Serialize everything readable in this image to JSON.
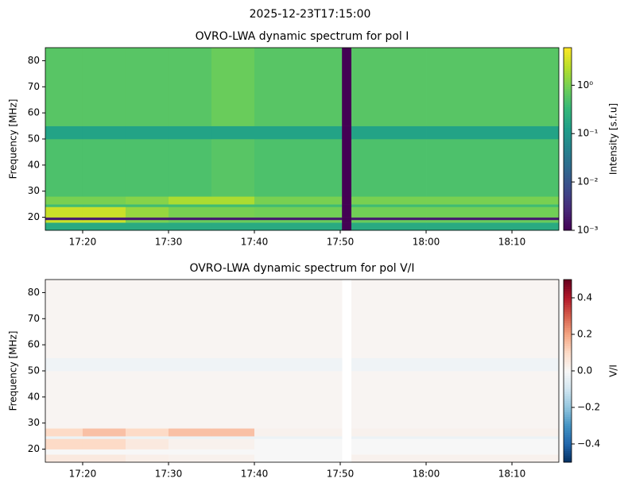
{
  "title": "2025-12-23T17:15:00",
  "chart_data": [
    {
      "type": "heatmap",
      "title": "OVRO-LWA dynamic spectrum for pol I",
      "ylabel": "Frequency [MHz]",
      "xbins": [
        1035.65,
        1040,
        1045,
        1050,
        1055,
        1060,
        1070.2,
        1071.3,
        1080,
        1095.46
      ],
      "ybins": [
        15,
        18,
        19,
        20,
        24,
        25,
        28,
        50,
        55,
        85
      ],
      "z": [
        [
          0.2,
          0.2,
          0.2,
          0.2,
          0.2,
          0.2,
          0.001,
          0.2,
          0.2
        ],
        [
          3,
          3,
          1,
          0.8,
          0.8,
          0.8,
          0.001,
          0.8,
          0.8
        ],
        [
          0.002,
          0.002,
          0.002,
          0.002,
          0.002,
          0.002,
          0.001,
          0.002,
          0.002
        ],
        [
          3,
          3,
          1.5,
          1,
          1,
          0.9,
          0.001,
          0.9,
          0.9
        ],
        [
          0.4,
          0.4,
          0.4,
          0.4,
          0.4,
          0.4,
          0.001,
          0.4,
          0.4
        ],
        [
          1,
          1,
          1.2,
          2,
          2,
          1,
          0.001,
          1,
          1
        ],
        [
          0.5,
          0.5,
          0.5,
          0.5,
          0.6,
          0.5,
          0.001,
          0.5,
          0.5
        ],
        [
          0.15,
          0.15,
          0.15,
          0.15,
          0.15,
          0.15,
          0.001,
          0.15,
          0.15
        ],
        [
          0.6,
          0.6,
          0.6,
          0.6,
          0.8,
          0.6,
          0.001,
          0.6,
          0.6
        ]
      ],
      "xlim": [
        1035.65,
        1095.46
      ],
      "ylim": [
        15,
        85
      ],
      "xticks": [
        {
          "value": 1040,
          "label": "17:20"
        },
        {
          "value": 1050,
          "label": "17:30"
        },
        {
          "value": 1060,
          "label": "17:40"
        },
        {
          "value": 1070,
          "label": "17:50"
        },
        {
          "value": 1080,
          "label": "18:00"
        },
        {
          "value": 1090,
          "label": "18:10"
        }
      ],
      "yticks": [
        20,
        30,
        40,
        50,
        60,
        70,
        80
      ],
      "colorbar": {
        "label": "Intensity [s.f.u]",
        "cmap": "viridis",
        "scale": "log",
        "lim": [
          0.001,
          6
        ],
        "ticks": [
          {
            "value": 0.001,
            "label": "10⁻³"
          },
          {
            "value": 0.01,
            "label": "10⁻²"
          },
          {
            "value": 0.1,
            "label": "10⁻¹"
          },
          {
            "value": 1,
            "label": "10⁰"
          }
        ]
      }
    },
    {
      "type": "heatmap",
      "title": "OVRO-LWA dynamic spectrum for pol V/I",
      "ylabel": "Frequency [MHz]",
      "xbins": [
        1035.65,
        1040,
        1045,
        1050,
        1055,
        1060,
        1070.2,
        1071.3,
        1080,
        1095.46
      ],
      "ybins": [
        15,
        18,
        19,
        20,
        24,
        25,
        28,
        50,
        55,
        85
      ],
      "z": [
        [
          0.05,
          0.05,
          0.03,
          0.02,
          0.02,
          0,
          null,
          0.02,
          0.02
        ],
        [
          0,
          0,
          0,
          0,
          0,
          0,
          null,
          0,
          0
        ],
        [
          0,
          0,
          0,
          0,
          0,
          0,
          null,
          0,
          0
        ],
        [
          0.1,
          0.1,
          0.05,
          0.02,
          0.02,
          0,
          null,
          0,
          0
        ],
        [
          -0.03,
          -0.03,
          -0.03,
          -0.03,
          -0.03,
          -0.03,
          null,
          -0.03,
          -0.03
        ],
        [
          0.1,
          0.15,
          0.1,
          0.15,
          0.15,
          0.02,
          null,
          0.02,
          0.02
        ],
        [
          0.01,
          0.01,
          0.01,
          0.01,
          0.01,
          0.01,
          null,
          0.01,
          0.01
        ],
        [
          -0.02,
          -0.02,
          -0.02,
          -0.02,
          -0.02,
          -0.02,
          null,
          -0.02,
          -0.02
        ],
        [
          0.01,
          0.01,
          0.01,
          0.01,
          0.01,
          0.01,
          null,
          0.01,
          0.01
        ]
      ],
      "xlim": [
        1035.65,
        1095.46
      ],
      "ylim": [
        15,
        85
      ],
      "xticks": [
        {
          "value": 1040,
          "label": "17:20"
        },
        {
          "value": 1050,
          "label": "17:30"
        },
        {
          "value": 1060,
          "label": "17:40"
        },
        {
          "value": 1070,
          "label": "17:50"
        },
        {
          "value": 1080,
          "label": "18:00"
        },
        {
          "value": 1090,
          "label": "18:10"
        }
      ],
      "yticks": [
        20,
        30,
        40,
        50,
        60,
        70,
        80
      ],
      "colorbar": {
        "label": "V/I",
        "cmap": "RdBu_r",
        "scale": "linear",
        "lim": [
          -0.5,
          0.5
        ],
        "ticks": [
          {
            "value": -0.4,
            "label": "−0.4"
          },
          {
            "value": -0.2,
            "label": "−0.2"
          },
          {
            "value": 0,
            "label": "0.0"
          },
          0.2,
          0.4
        ]
      }
    }
  ]
}
